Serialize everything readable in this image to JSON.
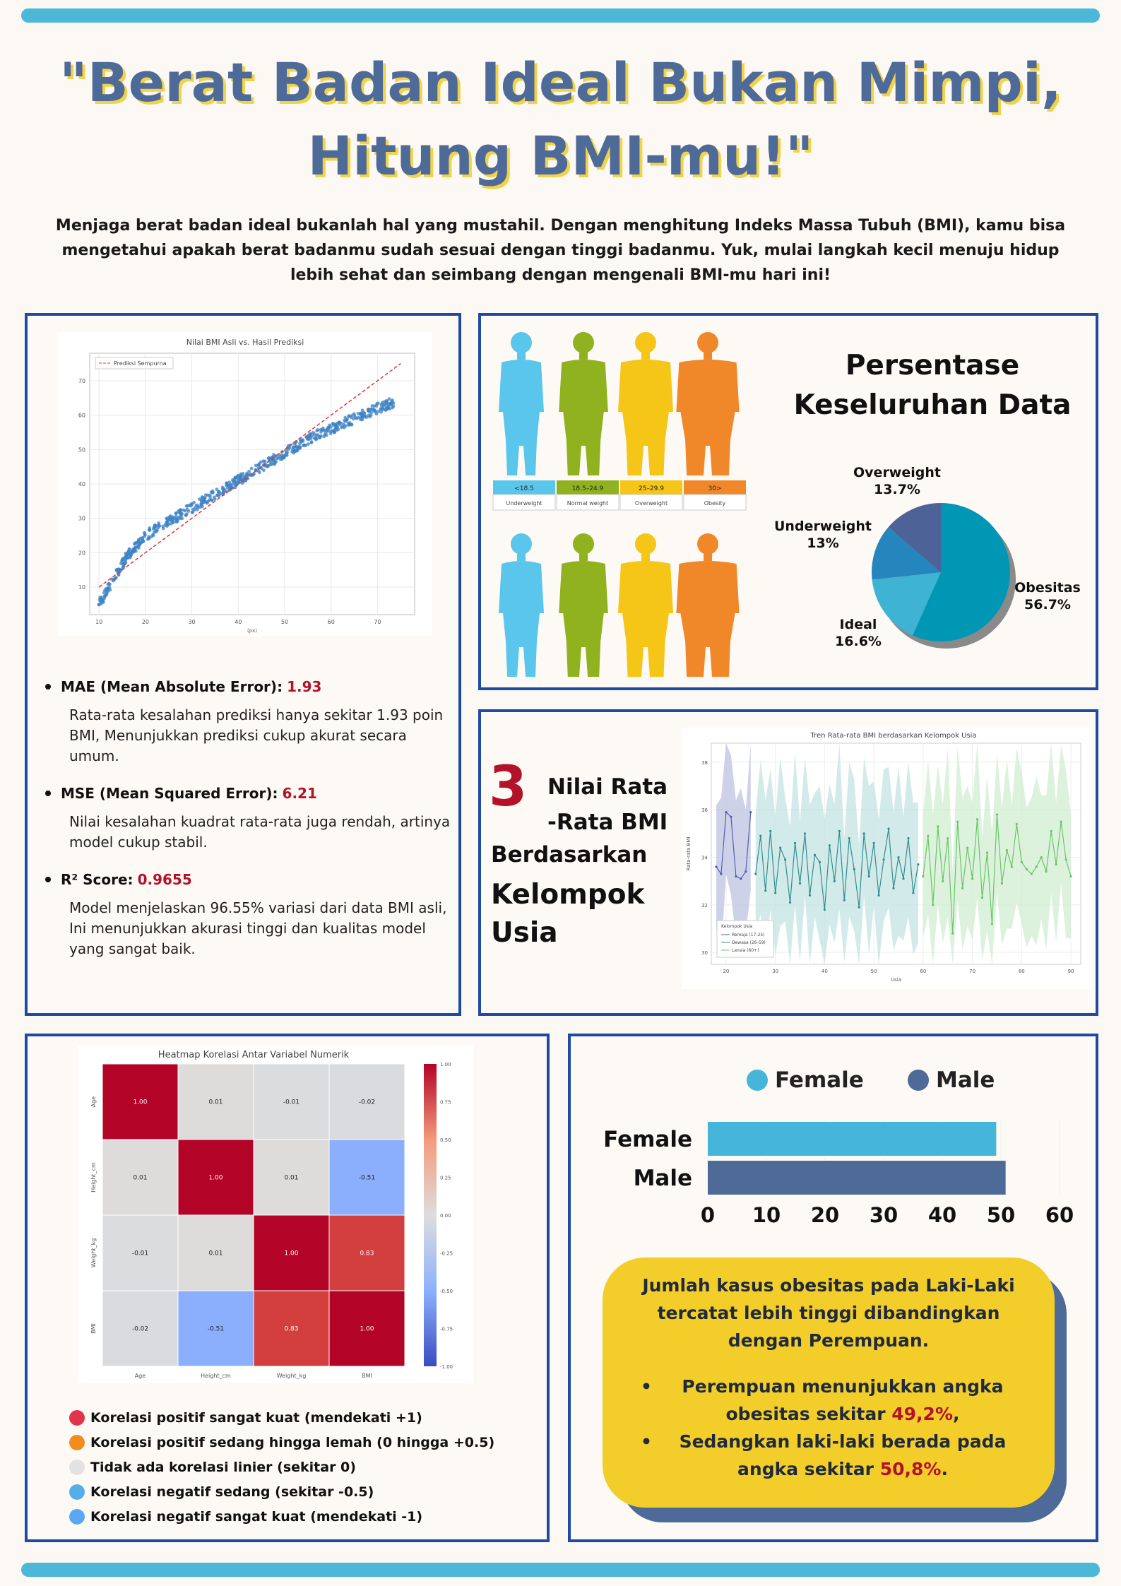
{
  "title": {
    "line1": "\"Berat Badan Ideal Bukan Mimpi,",
    "line2": "Hitung BMI-mu!\""
  },
  "intro": "Menjaga berat badan ideal bukanlah hal yang mustahil. Dengan menghitung Indeks Massa Tubuh (BMI), kamu bisa mengetahui apakah berat badanmu sudah sesuai dengan tinggi badanmu. Yuk, mulai langkah kecil menuju hidup lebih sehat dan seimbang dengan mengenali BMI-mu hari ini!",
  "colors": {
    "panel_border": "#1f4aa4",
    "accent_red": "#b3122a",
    "female": "#45b5d9",
    "male": "#4e6a98",
    "callout": "#f3ce2a"
  },
  "metrics": [
    {
      "label": "MAE (Mean Absolute Error):",
      "value": "1.93",
      "desc": "Rata-rata kesalahan prediksi hanya sekitar 1.93 poin BMI, Menunjukkan prediksi cukup akurat secara umum."
    },
    {
      "label": "MSE (Mean Squared Error):",
      "value": "6.21",
      "desc": "Nilai kesalahan kuadrat rata-rata juga rendah, artinya model cukup stabil."
    },
    {
      "label": "R² Score:",
      "value": "0.9655",
      "desc": "Model menjelaskan 96.55% variasi dari data BMI asli, Ini menunjukkan akurasi tinggi dan kualitas model yang sangat baik."
    }
  ],
  "body_types": [
    {
      "range": "<18.5",
      "label": "Underweight",
      "color": "#5bc6ec",
      "head": "#5bc6ec"
    },
    {
      "range": "18.5–24.9",
      "label": "Normal weight",
      "color": "#8fb21e",
      "head": "#8fb21e"
    },
    {
      "range": "25–29.9",
      "label": "Overweight",
      "color": "#f5c518",
      "head": "#f5c518"
    },
    {
      "range": "30>",
      "label": "Obesity",
      "color": "#f0882a",
      "head": "#f0882a"
    }
  ],
  "pie": {
    "title_line1": "Persentase",
    "title_line2": "Keseluruhan Data",
    "labels": {
      "overweight_name": "Overweight",
      "overweight_pct": "13.7%",
      "underweight_name": "Underweight",
      "underweight_pct": "13%",
      "obesitas_name": "Obesitas",
      "obesitas_pct": "56.7%",
      "ideal_name": "Ideal",
      "ideal_pct": "16.6%"
    }
  },
  "age_section": {
    "number": "3",
    "line1": "Nilai Rata",
    "line2": "-Rata BMI",
    "line3": "Berdasarkan",
    "line4": "Kelompok",
    "line5": "Usia"
  },
  "heat_legend": [
    {
      "label": "Korelasi positif sangat kuat (mendekati +1)",
      "color": "#e0344b"
    },
    {
      "label": "Korelasi positif sedang hingga lemah (0 hingga +0.5)",
      "color": "#f08d1e"
    },
    {
      "label": "Tidak ada korelasi linier (sekitar 0)",
      "color": "#e2e2e2"
    },
    {
      "label": "Korelasi negatif sedang (sekitar -0.5)",
      "color": "#56aee8"
    },
    {
      "label": "Korelasi negatif sangat kuat (mendekati -1)",
      "color": "#5ba7f0"
    }
  ],
  "callout": {
    "lead": "Jumlah kasus obesitas pada Laki-Laki tercatat lebih tinggi dibandingkan dengan Perempuan.",
    "b1_text": "Perempuan menunjukkan angka obesitas sekitar ",
    "b1_val": "49,2%",
    "b1_end": ",",
    "b2_text": "Sedangkan laki-laki berada pada angka sekitar ",
    "b2_val": "50,8%",
    "b2_end": ".",
    "bullet": "•"
  },
  "chart_data": [
    {
      "type": "scatter",
      "title": "Nilai BMI Asli vs. Hasil Prediksi",
      "xlabel": "(px)",
      "ylabel": "",
      "legend": "Prediksi Sempurna",
      "xlim": [
        8,
        78
      ],
      "ylim": [
        2,
        78
      ],
      "xticks": [
        10,
        20,
        30,
        40,
        50,
        60,
        70
      ],
      "yticks": [
        10,
        20,
        30,
        40,
        50,
        60,
        70
      ],
      "perfect_line": {
        "x": [
          10,
          75
        ],
        "y": [
          10,
          75
        ]
      },
      "trend": {
        "x": [
          10,
          13,
          16,
          20,
          25,
          30,
          35,
          40,
          45,
          50,
          55,
          60,
          65,
          70,
          74
        ],
        "y": [
          5,
          12,
          19,
          25,
          29,
          33,
          37,
          41,
          45,
          49,
          53,
          56,
          59,
          62,
          64
        ]
      }
    },
    {
      "type": "pie",
      "labels": [
        "Obesitas",
        "Ideal",
        "Underweight",
        "Overweight"
      ],
      "values": [
        56.7,
        16.6,
        13,
        13.7
      ],
      "colors": [
        "#0097b5",
        "#3fb3d4",
        "#2586bd",
        "#4d6398"
      ]
    },
    {
      "type": "line",
      "title": "Tren Rata-rata BMI berdasarkan Kelompok Usia",
      "xlabel": "Usia",
      "ylabel": "Rata-rata BMI",
      "legend_title": "Kelompok Usia",
      "xticks": [
        20,
        30,
        40,
        50,
        60,
        70,
        80,
        90
      ],
      "yticks": [
        30,
        32,
        34,
        36,
        38
      ],
      "xlim": [
        17,
        92
      ],
      "ylim": [
        29.5,
        38.8
      ],
      "series": [
        {
          "name": "Remaja (17-25)",
          "color": "#5560a8",
          "band": "#b9bfe0",
          "x": [
            18,
            19,
            20,
            21,
            22,
            23,
            24,
            25
          ],
          "y": [
            33.6,
            33.3,
            35.9,
            35.7,
            33.2,
            33.1,
            33.4,
            35.9
          ]
        },
        {
          "name": "Dewasa (26-59)",
          "color": "#2f8f8f",
          "band": "#bfe1e0",
          "x": [
            26,
            27,
            28,
            29,
            30,
            31,
            32,
            33,
            34,
            35,
            36,
            37,
            38,
            39,
            40,
            41,
            42,
            43,
            44,
            45,
            46,
            47,
            48,
            49,
            50,
            51,
            52,
            53,
            54,
            55,
            56,
            57,
            58,
            59
          ],
          "y": [
            33.3,
            34.9,
            32.6,
            35.1,
            32.5,
            34.4,
            33.9,
            32.1,
            34.6,
            32.9,
            35.0,
            32.4,
            34.1,
            33.8,
            31.8,
            34.5,
            33.0,
            35.1,
            32.2,
            34.8,
            33.5,
            31.9,
            35.0,
            33.2,
            34.6,
            32.4,
            33.9,
            35.2,
            32.7,
            34.0,
            33.1,
            34.8,
            32.5,
            33.7
          ]
        },
        {
          "name": "Lansia (60+)",
          "color": "#6ac46a",
          "band": "#cdeccd",
          "x": [
            60,
            61,
            62,
            63,
            64,
            65,
            66,
            67,
            68,
            69,
            70,
            71,
            72,
            73,
            74,
            75,
            76,
            77,
            78,
            79,
            80,
            81,
            82,
            83,
            84,
            85,
            86,
            87,
            88,
            89,
            90
          ],
          "y": [
            33.2,
            34.9,
            32.0,
            35.3,
            33.0,
            34.8,
            30.8,
            35.5,
            32.7,
            34.4,
            33.1,
            35.6,
            32.3,
            34.2,
            31.2,
            35.8,
            32.9,
            34.3,
            33.6,
            35.4,
            33.8,
            33.5,
            33.3,
            33.6,
            34.0,
            33.4,
            35.1,
            33.7,
            35.5,
            33.9,
            33.2
          ]
        }
      ]
    },
    {
      "type": "heatmap",
      "title": "Heatmap Korelasi Antar Variabel Numerik",
      "row_labels": [
        "Age",
        "Height_cm",
        "Weight_kg",
        "BMI"
      ],
      "col_labels": [
        "Age",
        "Height_cm",
        "Weight_kg",
        "BMI"
      ],
      "values": [
        [
          1.0,
          0.01,
          -0.01,
          -0.02
        ],
        [
          0.01,
          1.0,
          0.01,
          -0.51
        ],
        [
          -0.01,
          0.01,
          1.0,
          0.83
        ],
        [
          -0.02,
          -0.51,
          0.83,
          1.0
        ]
      ],
      "colorbar_ticks": [
        "1.00",
        "0.75",
        "0.50",
        "0.25",
        "0.00",
        "-0.25",
        "-0.50",
        "-0.75",
        "-1.00"
      ],
      "vmin": -1,
      "vmax": 1
    },
    {
      "type": "bar",
      "orientation": "horizontal",
      "categories": [
        "Female",
        "Male"
      ],
      "values": [
        49.2,
        50.8
      ],
      "legend": [
        "Female",
        "Male"
      ],
      "xlim": [
        0,
        60
      ],
      "xticks": [
        0,
        10,
        20,
        30,
        40,
        50,
        60
      ]
    }
  ]
}
